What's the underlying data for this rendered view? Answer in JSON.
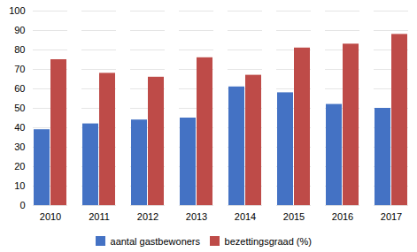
{
  "chart_data": {
    "type": "bar",
    "categories": [
      "2010",
      "2011",
      "2012",
      "2013",
      "2014",
      "2015",
      "2016",
      "2017"
    ],
    "series": [
      {
        "name": "aantal gastbewoners",
        "color": "#4472C4",
        "values": [
          39,
          42,
          44,
          45,
          61,
          58,
          52,
          50
        ]
      },
      {
        "name": "bezettingsgraad (%)",
        "color": "#BE4B48",
        "values": [
          75,
          68,
          66,
          76,
          67,
          81,
          83,
          88
        ]
      }
    ],
    "ylim": [
      0,
      100
    ],
    "yticks": [
      0,
      10,
      20,
      30,
      40,
      50,
      60,
      70,
      80,
      90,
      100
    ],
    "grid": true,
    "legend": "bottom"
  }
}
